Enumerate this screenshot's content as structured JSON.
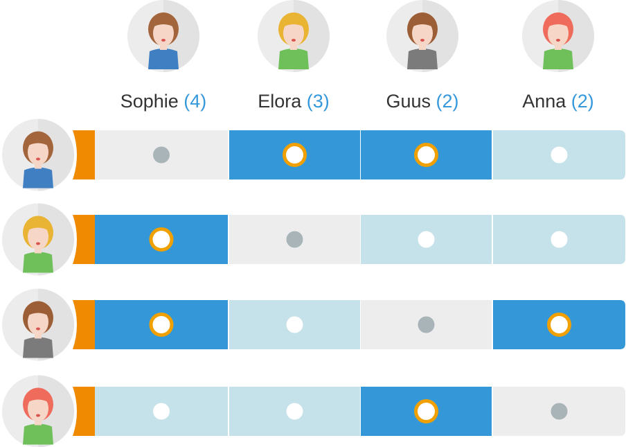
{
  "people": [
    {
      "name": "Sophie",
      "count": "(4)"
    },
    {
      "name": "Elora",
      "count": "(3)"
    },
    {
      "name": "Guus",
      "count": "(2)"
    },
    {
      "name": "Anna",
      "count": "(2)"
    }
  ],
  "matrix": [
    [
      "self",
      "selected",
      "selected",
      "open"
    ],
    [
      "selected",
      "self",
      "open",
      "open"
    ],
    [
      "selected",
      "open",
      "self",
      "selected"
    ],
    [
      "open",
      "open",
      "selected",
      "self"
    ]
  ],
  "colors": {
    "self": "#ededed",
    "selected": "#3498d8",
    "open": "#c5e1ea",
    "tab": "#f08a00",
    "ring": "#f0a000",
    "self_dot": "#a8b4b8",
    "open_dot": "#ffffff"
  }
}
